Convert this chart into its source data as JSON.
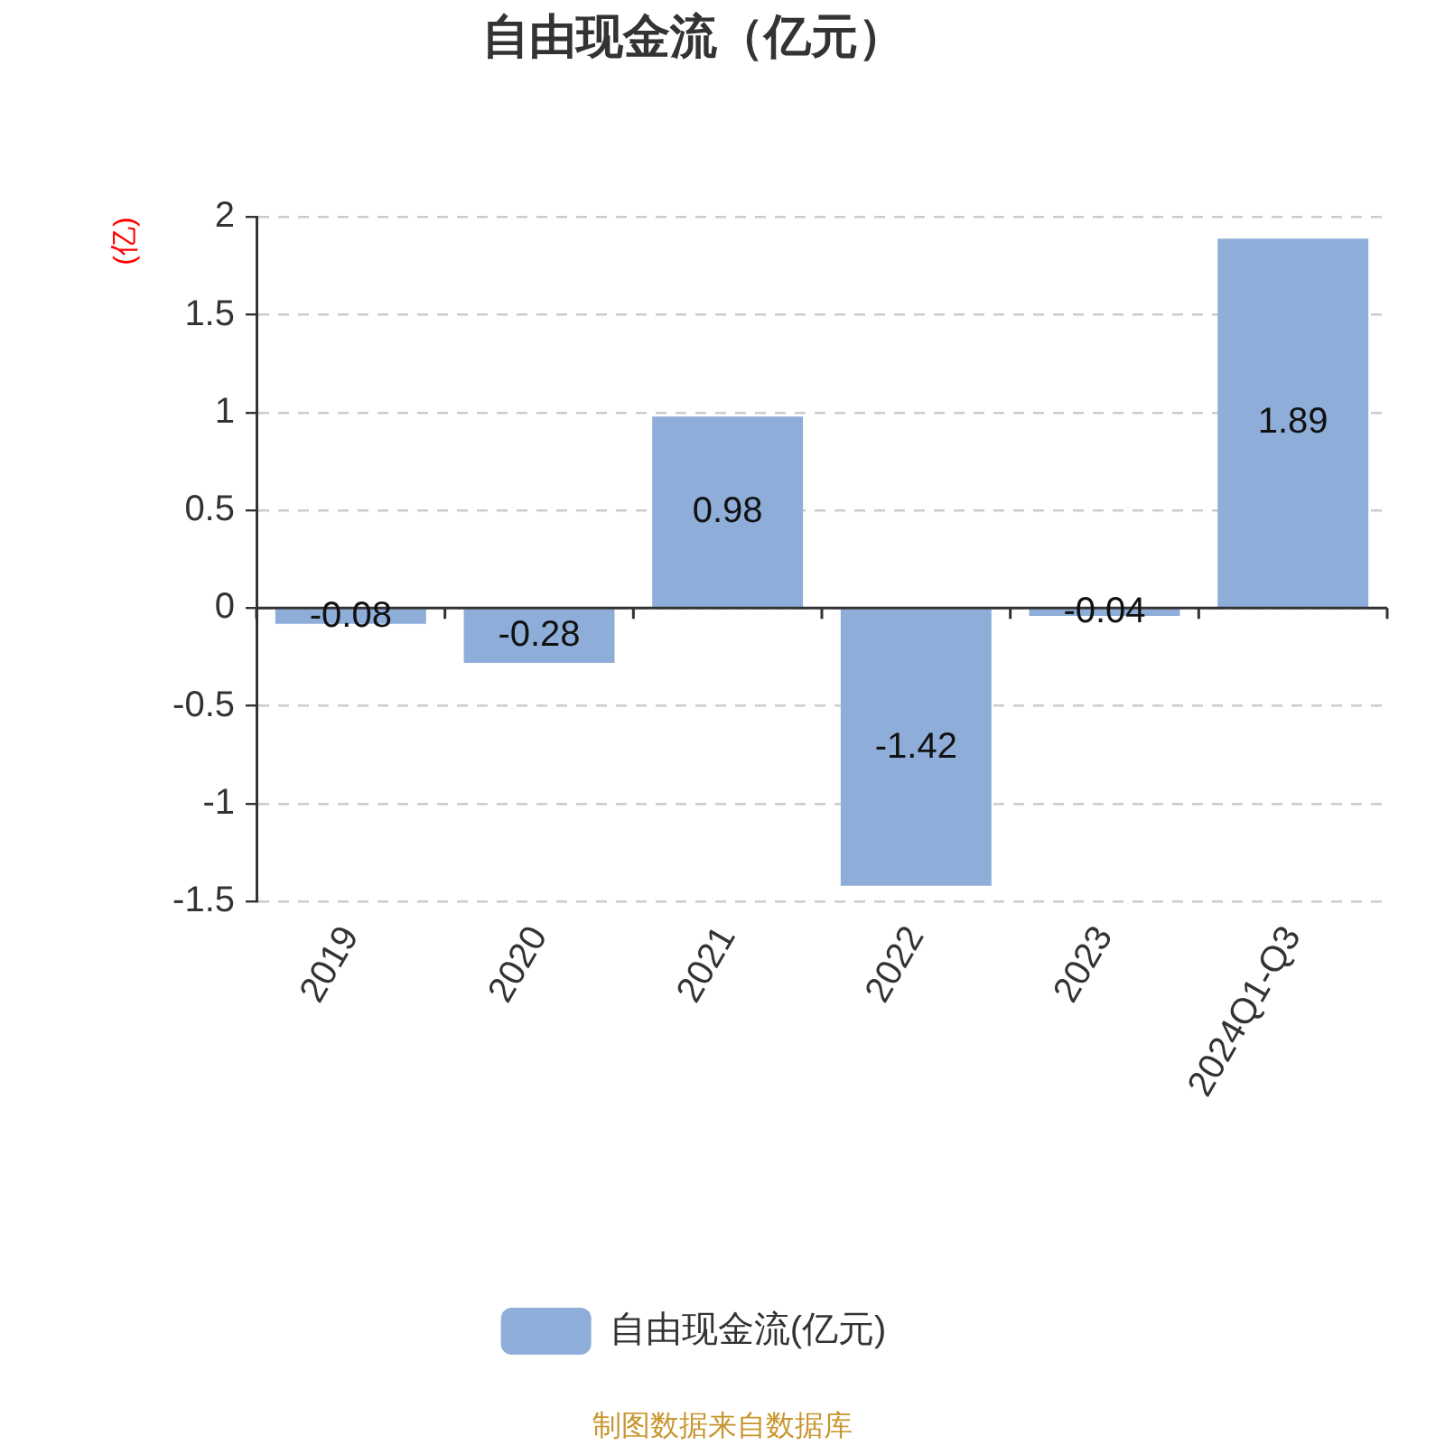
{
  "chart_data": {
    "type": "bar",
    "title": "自由现金流（亿元）",
    "ylabel": "(亿)",
    "categories": [
      "2019",
      "2020",
      "2021",
      "2022",
      "2023",
      "2024Q1-Q3"
    ],
    "series": [
      {
        "name": "自由现金流(亿元)",
        "color": "#8eaed9",
        "values": [
          -0.08,
          -0.28,
          0.98,
          -1.42,
          -0.04,
          1.89
        ]
      }
    ],
    "ylim": [
      -1.5,
      2
    ],
    "yticks": [
      -1.5,
      -1,
      -0.5,
      0,
      0.5,
      1,
      1.5,
      2
    ],
    "grid": "y",
    "legend": "bottom",
    "data_labels": true,
    "annotations": [
      "制图数据来自数据库"
    ]
  }
}
